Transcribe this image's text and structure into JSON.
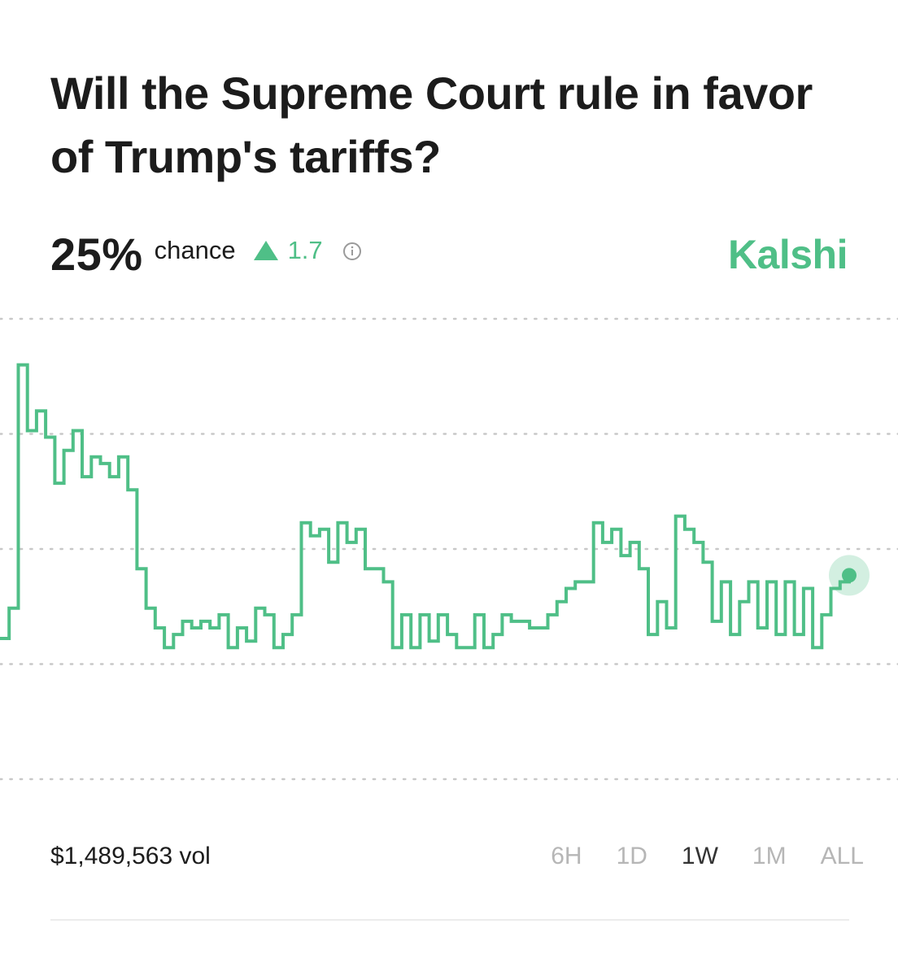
{
  "market": {
    "title": "Will the Supreme Court rule in favor of Trump's tariffs?",
    "chance_value": "25",
    "chance_unit": "%",
    "chance_label": "chance",
    "delta": "1.7",
    "brand": "Kalshi",
    "volume": "$1,489,563 vol"
  },
  "colors": {
    "accent": "#4fbf87",
    "text": "#1c1c1c",
    "muted": "#b6b6b6",
    "grid": "#c8c8c8"
  },
  "ranges": [
    {
      "label": "6H",
      "active": false
    },
    {
      "label": "1D",
      "active": false
    },
    {
      "label": "1W",
      "active": true
    },
    {
      "label": "1M",
      "active": false
    },
    {
      "label": "ALL",
      "active": false
    }
  ],
  "chart_data": {
    "type": "line",
    "step": true,
    "gridlines": 5,
    "grid": true,
    "ylim": [
      10,
      45
    ],
    "series": [
      {
        "values": [
          20.7,
          20.7,
          23.0,
          23.0,
          41.5,
          41.5,
          36.5,
          36.5,
          38.0,
          38.0,
          36.0,
          36.0,
          32.5,
          32.5,
          35.0,
          35.0,
          36.5,
          36.5,
          33.0,
          33.0,
          34.5,
          34.5,
          34.0,
          34.0,
          33.0,
          33.0,
          34.5,
          34.5,
          32.0,
          32.0,
          26.0,
          26.0,
          23.0,
          23.0,
          21.5,
          21.5,
          20.0,
          20.0,
          21.0,
          21.0,
          22.0,
          22.0,
          21.5,
          21.5,
          22.0,
          22.0,
          21.5,
          21.5,
          22.5,
          22.5,
          20.0,
          20.0,
          21.5,
          21.5,
          20.5,
          20.5,
          23.0,
          23.0,
          22.5,
          22.5,
          20.0,
          20.0,
          21.0,
          21.0,
          22.5,
          22.5,
          29.5,
          29.5,
          28.5,
          28.5,
          29.0,
          29.0,
          26.5,
          26.5,
          29.5,
          29.5,
          28.0,
          28.0,
          29.0,
          29.0,
          26.0,
          26.0,
          26.0,
          26.0,
          25.0,
          25.0,
          20.0,
          20.0,
          22.5,
          22.5,
          20.0,
          20.0,
          22.5,
          22.5,
          20.5,
          20.5,
          22.5,
          22.5,
          21.0,
          21.0,
          20.0,
          20.0,
          20.0,
          20.0,
          22.5,
          22.5,
          20.0,
          20.0,
          21.0,
          21.0,
          22.5,
          22.5,
          22.0,
          22.0,
          22.0,
          22.0,
          21.5,
          21.5,
          21.5,
          21.5,
          22.5,
          22.5,
          23.5,
          23.5,
          24.5,
          24.5,
          25.0,
          25.0,
          25.0,
          25.0,
          29.5,
          29.5,
          28.0,
          28.0,
          29.0,
          29.0,
          27.0,
          27.0,
          28.0,
          28.0,
          26.0,
          26.0,
          21.0,
          21.0,
          23.5,
          23.5,
          21.5,
          21.5,
          30.0,
          30.0,
          29.0,
          29.0,
          28.0,
          28.0,
          26.5,
          26.5,
          22.0,
          22.0,
          25.0,
          25.0,
          21.0,
          21.0,
          23.5,
          23.5,
          25.0,
          25.0,
          21.5,
          21.5,
          25.0,
          25.0,
          21.0,
          21.0,
          25.0,
          25.0,
          21.0,
          21.0,
          24.5,
          24.5,
          20.0,
          20.0,
          22.5,
          22.5,
          24.5,
          24.5,
          25.0,
          25.0,
          25.5
        ]
      }
    ]
  }
}
